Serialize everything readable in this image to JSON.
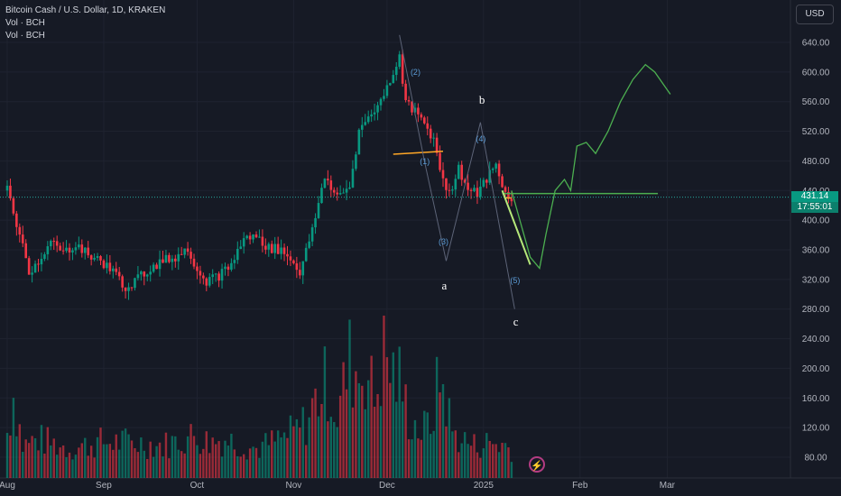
{
  "header": {
    "title": "Bitcoin Cash / U.S. Dollar, 1D, KRAKEN",
    "vol1": "Vol · BCH",
    "vol2": "Vol · BCH"
  },
  "currency_button": "USD",
  "price_tag": {
    "price": "431.14",
    "countdown": "17:55:01"
  },
  "wave_labels": {
    "w1": "(1)",
    "w2": "(2)",
    "w3": "(3)",
    "w4": "(4)",
    "w5": "(5)",
    "a": "a",
    "b": "b",
    "c": "c"
  },
  "colors": {
    "up": "#089981",
    "down": "#f23645",
    "projection": "#4caf50",
    "horizontal": "#ffa726",
    "wave_line": "#5d6478",
    "current_price": "#26a69a"
  },
  "chart_data": {
    "type": "candlestick",
    "title": "Bitcoin Cash / U.S. Dollar, 1D, KRAKEN",
    "x_ticks": [
      "Aug",
      "Sep",
      "Oct",
      "Nov",
      "Dec",
      "2025",
      "Feb",
      "Mar"
    ],
    "y_ticks": [
      80,
      120,
      160,
      200,
      240,
      280,
      320,
      360,
      400,
      440,
      480,
      520,
      560,
      600,
      640
    ],
    "y_tick_labels": [
      "80.00",
      "120.00",
      "160.00",
      "200.00",
      "240.00",
      "280.00",
      "320.00",
      "360.00",
      "400.00",
      "440.00",
      "480.00",
      "520.00",
      "560.00",
      "600.00",
      "640.00"
    ],
    "ylim": [
      48,
      660
    ],
    "xlim_days": [
      0,
      228
    ],
    "month_starts": [
      0,
      31,
      61,
      92,
      122,
      153,
      184,
      212
    ],
    "last_price": 431.14,
    "price_anchors": [
      [
        0,
        440
      ],
      [
        4,
        380
      ],
      [
        7,
        330
      ],
      [
        10,
        345
      ],
      [
        14,
        370
      ],
      [
        18,
        355
      ],
      [
        22,
        368
      ],
      [
        26,
        352
      ],
      [
        30,
        345
      ],
      [
        34,
        330
      ],
      [
        38,
        310
      ],
      [
        42,
        320
      ],
      [
        46,
        335
      ],
      [
        50,
        345
      ],
      [
        54,
        350
      ],
      [
        58,
        362
      ],
      [
        61,
        335
      ],
      [
        64,
        318
      ],
      [
        68,
        325
      ],
      [
        72,
        340
      ],
      [
        76,
        375
      ],
      [
        80,
        378
      ],
      [
        84,
        362
      ],
      [
        88,
        360
      ],
      [
        91,
        348
      ],
      [
        94,
        330
      ],
      [
        98,
        385
      ],
      [
        102,
        460
      ],
      [
        106,
        430
      ],
      [
        110,
        445
      ],
      [
        113,
        520
      ],
      [
        117,
        545
      ],
      [
        120,
        560
      ],
      [
        124,
        600
      ],
      [
        126,
        620
      ],
      [
        128,
        560
      ],
      [
        131,
        545
      ],
      [
        134,
        530
      ],
      [
        137,
        510
      ],
      [
        139,
        470
      ],
      [
        142,
        435
      ],
      [
        145,
        470
      ],
      [
        148,
        440
      ],
      [
        151,
        435
      ],
      [
        154,
        455
      ],
      [
        157,
        475
      ],
      [
        160,
        435
      ],
      [
        162,
        431
      ]
    ],
    "volume_anchors": [
      [
        0,
        70
      ],
      [
        2,
        130
      ],
      [
        5,
        50
      ],
      [
        10,
        60
      ],
      [
        20,
        45
      ],
      [
        30,
        55
      ],
      [
        40,
        55
      ],
      [
        50,
        50
      ],
      [
        60,
        65
      ],
      [
        65,
        55
      ],
      [
        70,
        60
      ],
      [
        80,
        45
      ],
      [
        88,
        60
      ],
      [
        92,
        70
      ],
      [
        96,
        85
      ],
      [
        100,
        130
      ],
      [
        103,
        150
      ],
      [
        106,
        95
      ],
      [
        110,
        180
      ],
      [
        113,
        160
      ],
      [
        115,
        175
      ],
      [
        118,
        120
      ],
      [
        121,
        190
      ],
      [
        124,
        160
      ],
      [
        126,
        150
      ],
      [
        129,
        95
      ],
      [
        133,
        70
      ],
      [
        136,
        85
      ],
      [
        139,
        155
      ],
      [
        141,
        120
      ],
      [
        143,
        70
      ],
      [
        146,
        60
      ],
      [
        150,
        50
      ],
      [
        155,
        55
      ],
      [
        160,
        50
      ],
      [
        162,
        45
      ]
    ],
    "projection_path": [
      [
        162,
        440
      ],
      [
        165,
        395
      ],
      [
        168,
        350
      ],
      [
        171,
        335
      ],
      [
        173,
        380
      ],
      [
        176,
        440
      ],
      [
        179,
        455
      ],
      [
        181,
        440
      ],
      [
        183,
        500
      ],
      [
        186,
        505
      ],
      [
        189,
        490
      ],
      [
        193,
        520
      ],
      [
        197,
        560
      ],
      [
        201,
        590
      ],
      [
        205,
        610
      ],
      [
        208,
        600
      ],
      [
        213,
        570
      ]
    ],
    "wave_path": [
      [
        126,
        650
      ],
      [
        134,
        480
      ],
      [
        141,
        345
      ],
      [
        152,
        532
      ],
      [
        163,
        280
      ]
    ],
    "wave_points": {
      "w1": [
        134,
        477
      ],
      "w2": [
        131,
        597
      ],
      "w3": [
        140,
        368
      ],
      "w4": [
        152,
        507
      ],
      "w5": [
        163,
        316
      ],
      "a": [
        141,
        312
      ],
      "b": [
        153,
        563
      ],
      "c": [
        164,
        264
      ]
    },
    "support_lines": [
      {
        "from": [
          159,
          436
        ],
        "to": [
          209,
          436
        ],
        "color": "#4caf50"
      },
      {
        "from": [
          124,
          489
        ],
        "to": [
          140,
          493
        ],
        "color": "#ffa726"
      },
      {
        "from": [
          160,
          430
        ],
        "to": [
          162,
          430
        ],
        "color": "#ffa726"
      }
    ]
  }
}
